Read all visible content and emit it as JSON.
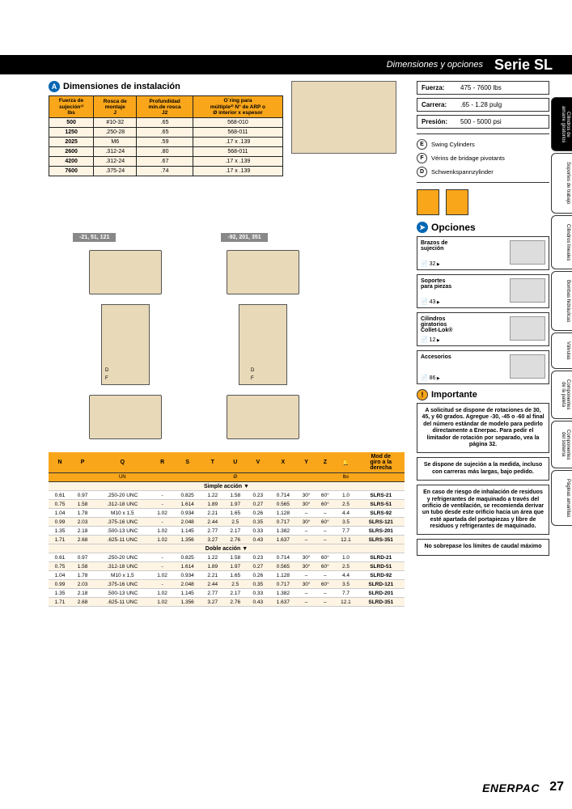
{
  "header": {
    "subtitle": "Dimensiones y opciones",
    "title": "Serie SL"
  },
  "install_section": {
    "badge": "A",
    "title": "Dimensiones de instalación"
  },
  "install_table": {
    "headers": [
      "Fuerza de\nsujeción¹⁾\nlbs",
      "Rosca de\nmontaje\nJ",
      "Profundidad\nmín.de rosca\nJ2",
      "O´ring para\nmúltiple²⁾ N° de ARP o\nØ interior x espesor"
    ],
    "rows": [
      [
        "500",
        "#10-32",
        ".65",
        "568-010"
      ],
      [
        "1250",
        ".250-28",
        ".65",
        "568-011"
      ],
      [
        "2025",
        "M6",
        ".59",
        ".17 x .139"
      ],
      [
        "2600",
        ".312-24",
        ".80",
        "568-011"
      ],
      [
        "4200",
        ".312-24",
        ".67",
        ".17 x .139"
      ],
      [
        "7600",
        ".375-24",
        ".74",
        ".17 x .139"
      ]
    ]
  },
  "variant_tabs": {
    "left": "-21, 51, 121",
    "right": "-92, 201, 351"
  },
  "main_table": {
    "headers": [
      "N",
      "P",
      "Q",
      "R",
      "S",
      "T",
      "U",
      "V",
      "X",
      "Y",
      "Z",
      "",
      "Mod de\ngiro a la\nderecha"
    ],
    "sub": [
      "",
      "",
      "UN",
      "",
      "",
      "",
      "Ø",
      "",
      "",
      "",
      "",
      "lbs",
      ""
    ],
    "simple_title": "Simple acción ▼",
    "simple_rows": [
      [
        "0.61",
        "0.97",
        ".250-20 UNC",
        "-",
        "0.825",
        "1.22",
        "1.58",
        "0.23",
        "0.714",
        "30°",
        "60°",
        "1.0",
        "SLRS-21"
      ],
      [
        "0.75",
        "1.58",
        ".312-18 UNC",
        "-",
        "1.614",
        "1.89",
        "1.97",
        "0.27",
        "0.565",
        "30°",
        "60°",
        "2.5",
        "SLRS-51"
      ],
      [
        "1.04",
        "1.78",
        "M10 x 1,5",
        "1.02",
        "0.934",
        "2.21",
        "1.65",
        "0.26",
        "1.128",
        "–",
        "–",
        "4.4",
        "SLRS-92"
      ],
      [
        "0.99",
        "2.03",
        ".375-16 UNC",
        "-",
        "2.048",
        "2.44",
        "2.5",
        "0.35",
        "0.717",
        "30°",
        "60°",
        "3.5",
        "SLRS-121"
      ],
      [
        "1.35",
        "2.18",
        ".500-13 UNC",
        "1.02",
        "1.145",
        "2.77",
        "2.17",
        "0.33",
        "1.382",
        "–",
        "–",
        "7.7",
        "SLRS-201"
      ],
      [
        "1.71",
        "2.68",
        ".625-11 UNC",
        "1.02",
        "1.356",
        "3.27",
        "2.76",
        "0.43",
        "1.637",
        "–",
        "–",
        "12.1",
        "SLRS-351"
      ]
    ],
    "double_title": "Doble acción ▼",
    "double_rows": [
      [
        "0.61",
        "0.97",
        ".250-20 UNC",
        "-",
        "0.825",
        "1.22",
        "1.58",
        "0.23",
        "0.714",
        "30°",
        "60°",
        "1.0",
        "SLRD-21"
      ],
      [
        "0.75",
        "1.58",
        ".312-18 UNC",
        "-",
        "1.614",
        "1.89",
        "1.97",
        "0.27",
        "0.565",
        "30°",
        "60°",
        "2.5",
        "SLRD-51"
      ],
      [
        "1.04",
        "1.78",
        "M10 x 1,5",
        "1.02",
        "0.934",
        "2.21",
        "1.65",
        "0.26",
        "1.128",
        "–",
        "–",
        "4.4",
        "SLRD-92"
      ],
      [
        "0.99",
        "2.03",
        ".375-16 UNC",
        "-",
        "2.048",
        "2.44",
        "2.5",
        "0.35",
        "0.717",
        "30°",
        "60°",
        "3.5",
        "SLRD-121"
      ],
      [
        "1.35",
        "2.18",
        ".500-13 UNC",
        "1.02",
        "1.145",
        "2.77",
        "2.17",
        "0.33",
        "1.382",
        "–",
        "–",
        "7.7",
        "SLRD-201"
      ],
      [
        "1.71",
        "2.68",
        ".625-11 UNC",
        "1.02",
        "1.356",
        "3.27",
        "2.76",
        "0.43",
        "1.637",
        "–",
        "–",
        "12.1",
        "SLRD-351"
      ]
    ]
  },
  "specs": {
    "fuerza": {
      "label": "Fuerza:",
      "value": "475 - 7600 lbs"
    },
    "carrera": {
      "label": "Carrera:",
      "value": ".65 - 1.28 pulg"
    },
    "presion": {
      "label": "Presión:",
      "value": "500 - 5000 psi"
    }
  },
  "languages": [
    {
      "code": "E",
      "text": "Swing Cylinders"
    },
    {
      "code": "F",
      "text": "Vérins de bridage pivotants"
    },
    {
      "code": "D",
      "text": "Schwenkspannzylinder"
    }
  ],
  "opciones": {
    "title": "Opciones",
    "cards": [
      {
        "title": "Brazos de\nsujeción",
        "page": "📄 32"
      },
      {
        "title": "Soportes\npara piezas",
        "page": "📄 43"
      },
      {
        "title": "Cilindros\ngiratorios\nCollet-Lok®",
        "page": "📄 12"
      },
      {
        "title": "Accesorios",
        "page": "📄 86"
      }
    ]
  },
  "importante": {
    "title": "Importante",
    "notes": [
      "A solicitud se dispone de rotaciones de 30, 45, y 60 grados. Agregue -30, -45 o -60 al final del número estándar de modelo para pedirlo directamente a Enerpac. Para pedir el limitador de rotación por separado, vea la página 32.",
      "Se dispone de sujeción a la medida, incluso con carreras más largas, bajo pedido.",
      "En caso de riesgo de inhalación de residuos y refrigerantes de maquinado a través del orificio de ventilación, se recomienda derivar un tubo desde este orificio hacia un área que esté apartada del portapiezas y libre de residuos y refrigerantes de maquinado.",
      "No sobrepase los límites de caudal máximo"
    ]
  },
  "vtabs": [
    "Cilindros de\namarre giratorios",
    "Soportes de trabajo",
    "Cilindros lineales",
    "Bombas hidráulicas",
    "Válvulas",
    "Componentes\nde la paleta",
    "Componentes\ndel sistema",
    "Páginas amarillas"
  ],
  "footer": {
    "brand": "ENERPAC",
    "page": "27"
  }
}
